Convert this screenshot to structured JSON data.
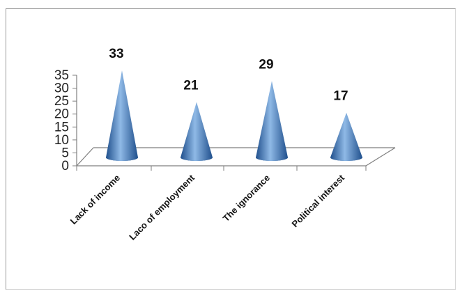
{
  "chart_data": {
    "type": "bar",
    "bar_shape": "3d-cone",
    "categories": [
      "Lack of income",
      "Laco of employment",
      "The ignorance",
      "Political interest"
    ],
    "values": [
      33,
      21,
      29,
      17
    ],
    "data_labels": [
      "33",
      "21",
      "29",
      "17"
    ],
    "yticks": [
      "0",
      "5",
      "10",
      "15",
      "20",
      "25",
      "30",
      "35"
    ],
    "ylim": [
      0,
      35
    ],
    "grid": false,
    "legend": "none",
    "colors": {
      "cone_dark": "#1f4f8c",
      "cone_mid": "#4f86c6",
      "cone_light": "#8fb9e6",
      "axis": "#7f7f7f"
    }
  }
}
